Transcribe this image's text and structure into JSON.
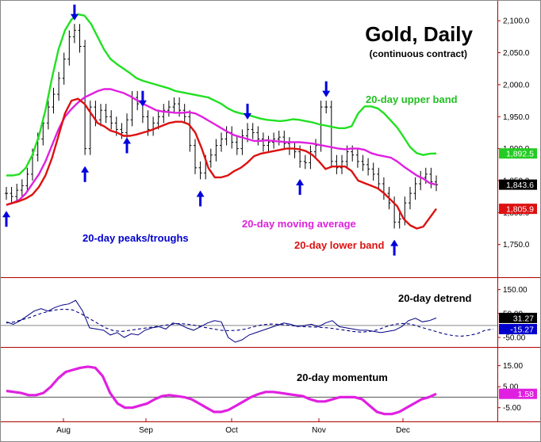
{
  "chart_data": {
    "type": "line",
    "title": "Gold, Daily",
    "subtitle": "(continuous contract)",
    "x_tick_labels": [
      "Aug",
      "Sep",
      "Oct",
      "Nov",
      "Dec"
    ],
    "colors": {
      "upper_band": "#22e022",
      "moving_average": "#e020e0",
      "lower_band": "#dd1111",
      "arrows": "#0000dd",
      "detrend": "#000080",
      "momentum": "#e020e0",
      "price": "#000000",
      "frame": "#b00000"
    },
    "annotations": [
      {
        "text": "20-day upper band",
        "color": "#22c022"
      },
      {
        "text": "20-day moving average",
        "color": "#dd22dd"
      },
      {
        "text": "20-day lower band",
        "color": "#dd1111"
      },
      {
        "text": "20-day peaks/troughs",
        "color": "#0000cc"
      },
      {
        "text": "20-day detrend",
        "color": "#000000"
      },
      {
        "text": "20-day momentum",
        "color": "#000000"
      }
    ],
    "panels": [
      {
        "name": "price",
        "ylim": [
          1705,
          2125
        ],
        "y_tick_labels": [
          "2,100.0",
          "2,050.0",
          "2,000.0",
          "1,950.0",
          "1,900.0",
          "1,850.0",
          "1,800.0",
          "1,750.0"
        ],
        "y_tick_values": [
          2100,
          2050,
          2000,
          1950,
          1900,
          1850,
          1800,
          1750
        ],
        "value_labels": [
          {
            "text": "1,892.5",
            "value": 1892.5,
            "color": "#22cc22"
          },
          {
            "text": "1,843.6",
            "value": 1843.6,
            "color": "#000000"
          },
          {
            "text": "1,805.9",
            "value": 1805.9,
            "color": "#dd1111"
          }
        ],
        "series": [
          {
            "key": "upper",
            "values": [
              1858,
              1858,
              1860,
              1870,
              1890,
              1920,
              1960,
              2010,
              2055,
              2085,
              2102,
              2110,
              2108,
              2095,
              2075,
              2055,
              2040,
              2032,
              2025,
              2018,
              2010,
              2006,
              2003,
              2000,
              1997,
              1994,
              1990,
              1988,
              1986,
              1984,
              1982,
              1980,
              1975,
              1970,
              1963,
              1958,
              1955,
              1953,
              1950,
              1947,
              1945,
              1944,
              1943,
              1944,
              1946,
              1945,
              1943,
              1941,
              1938,
              1936,
              1934,
              1932,
              1932,
              1935,
              1955,
              1966,
              1966,
              1963,
              1955,
              1944,
              1933,
              1918,
              1902,
              1893,
              1890,
              1892,
              1892.5
            ]
          },
          {
            "key": "ma",
            "values": [
              1812,
              1815,
              1820,
              1830,
              1845,
              1860,
              1880,
              1905,
              1930,
              1950,
              1962,
              1972,
              1980,
              1985,
              1990,
              1993,
              1993,
              1990,
              1987,
              1982,
              1976,
              1970,
              1965,
              1960,
              1958,
              1957,
              1956,
              1956,
              1957,
              1955,
              1950,
              1944,
              1938,
              1932,
              1926,
              1921,
              1918,
              1915,
              1912,
              1912,
              1913,
              1912,
              1911,
              1910,
              1910,
              1910,
              1909,
              1908,
              1906,
              1904,
              1902,
              1900,
              1899,
              1900,
              1900,
              1898,
              1893,
              1890,
              1888,
              1886,
              1880,
              1872,
              1865,
              1858,
              1853,
              1846,
              1843.6
            ]
          },
          {
            "key": "lower",
            "values": [
              1812,
              1815,
              1818,
              1822,
              1828,
              1840,
              1858,
              1885,
              1920,
              1955,
              1975,
              1978,
              1970,
              1955,
              1940,
              1935,
              1928,
              1925,
              1920,
              1920,
              1922,
              1925,
              1928,
              1932,
              1936,
              1940,
              1942,
              1942,
              1938,
              1925,
              1900,
              1870,
              1855,
              1855,
              1858,
              1865,
              1870,
              1878,
              1888,
              1892,
              1894,
              1896,
              1898,
              1900,
              1900,
              1899,
              1896,
              1890,
              1880,
              1868,
              1872,
              1872,
              1872,
              1865,
              1850,
              1846,
              1842,
              1838,
              1830,
              1820,
              1810,
              1790,
              1780,
              1775,
              1778,
              1792,
              1805.9
            ]
          },
          {
            "key": "price",
            "values": [
              1830,
              1825,
              1835,
              1842,
              1860,
              1890,
              1915,
              1940,
              1965,
              1985,
              2010,
              2040,
              2075,
              2085,
              2060,
              1900,
              1965,
              1945,
              1960,
              1950,
              1940,
              1930,
              1925,
              1945,
              1980,
              1970,
              1950,
              1930,
              1940,
              1950,
              1960,
              1965,
              1970,
              1960,
              1950,
              1905,
              1870,
              1862,
              1880,
              1890,
              1905,
              1915,
              1925,
              1910,
              1900,
              1920,
              1930,
              1925,
              1915,
              1905,
              1910,
              1915,
              1918,
              1908,
              1900,
              1895,
              1880,
              1878,
              1895,
              1905,
              1965,
              1965,
              1880,
              1870,
              1880,
              1895,
              1890,
              1880,
              1875,
              1868,
              1860,
              1845,
              1830,
              1815,
              1785,
              1790,
              1815,
              1830,
              1845,
              1855,
              1860,
              1848,
              1843.6
            ]
          }
        ]
      },
      {
        "name": "detrend",
        "ylim": [
          -70,
          185
        ],
        "y_tick_labels": [
          "150.00",
          "50.00",
          "-50.00"
        ],
        "y_tick_values": [
          150,
          50,
          -50
        ],
        "zero_line": 0,
        "value_labels": [
          {
            "text": "31.27",
            "value": 31.27,
            "color": "#000000"
          },
          {
            "text": "-15.27",
            "value": -15.27,
            "color": "#0000cc"
          }
        ],
        "series": [
          {
            "key": "detrend",
            "style": "solid",
            "values": [
              15,
              5,
              20,
              40,
              60,
              70,
              60,
              75,
              85,
              90,
              105,
              60,
              -10,
              -15,
              -20,
              -40,
              -30,
              -50,
              -35,
              -40,
              -20,
              -10,
              -5,
              -15,
              10,
              5,
              -10,
              -20,
              -5,
              10,
              20,
              15,
              -50,
              -70,
              -60,
              -40,
              -30,
              -20,
              -10,
              0,
              10,
              5,
              -5,
              0,
              5,
              -5,
              10,
              20,
              -5,
              -10,
              -15,
              -20,
              -20,
              -25,
              -30,
              -25,
              -20,
              -5,
              20,
              30,
              15,
              20,
              31.27
            ]
          },
          {
            "key": "detrend-cycle",
            "style": "dashed",
            "values": [
              10,
              15,
              25,
              35,
              48,
              58,
              65,
              68,
              65,
              50,
              30,
              10,
              -10,
              -22,
              -25,
              -20,
              -15,
              -10,
              -5,
              0,
              5,
              8,
              5,
              0,
              -8,
              -14,
              -20,
              -22,
              -20,
              -15,
              -5,
              3,
              6,
              5,
              2,
              -2,
              -5,
              -6,
              -8,
              -10,
              -15,
              -20,
              -25,
              -28,
              -25,
              -18,
              -5,
              5,
              8,
              6,
              -5,
              -15,
              -25,
              -35,
              -42,
              -45,
              -42,
              -35,
              -20,
              -15.27
            ]
          }
        ]
      },
      {
        "name": "momentum",
        "ylim": [
          -10,
          22
        ],
        "y_tick_labels": [
          "15.00",
          "5.00",
          "-5.00"
        ],
        "y_tick_values": [
          15,
          5,
          -5
        ],
        "zero_line": 0,
        "value_labels": [
          {
            "text": "1.58",
            "value": 1.58,
            "color": "#e020e0"
          }
        ],
        "series": [
          {
            "key": "momentum",
            "style": "solid",
            "values": [
              3,
              2.5,
              2,
              1,
              1,
              2,
              5,
              9,
              12,
              13,
              14,
              14.5,
              14,
              10,
              2,
              -3,
              -5,
              -5,
              -4,
              -3,
              -1,
              0.5,
              1,
              0.5,
              0,
              -1,
              -3,
              -5,
              -7,
              -7,
              -6,
              -4,
              -2,
              0,
              1.5,
              2.5,
              2.5,
              2,
              1.5,
              1,
              0.5,
              -1,
              -2,
              -2,
              -1,
              0,
              0,
              0,
              -1,
              -4,
              -7,
              -8,
              -8,
              -7,
              -5,
              -3,
              -1,
              0,
              1.58
            ]
          }
        ]
      }
    ],
    "arrows": [
      {
        "direction": "up",
        "index": 0
      },
      {
        "direction": "down",
        "index": 13
      },
      {
        "direction": "up",
        "index": 15
      },
      {
        "direction": "up",
        "index": 23
      },
      {
        "direction": "down",
        "index": 26
      },
      {
        "direction": "up",
        "index": 37
      },
      {
        "direction": "down",
        "index": 46
      },
      {
        "direction": "up",
        "index": 56
      },
      {
        "direction": "down",
        "index": 61
      },
      {
        "direction": "up",
        "index": 74
      }
    ]
  }
}
